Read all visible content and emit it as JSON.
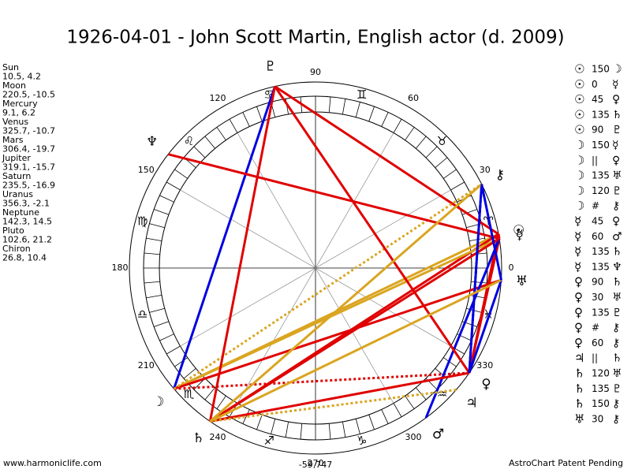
{
  "title": "1926-04-01 - John Scott Martin, English actor (d. 2009)",
  "planets": [
    {
      "name": "Sun",
      "glyph": "☉",
      "position": "10.5, 4.2"
    },
    {
      "name": "Moon",
      "glyph": "☽",
      "position": "220.5, -10.5"
    },
    {
      "name": "Mercury",
      "glyph": "☿",
      "position": "9.1, 6.2"
    },
    {
      "name": "Venus",
      "glyph": "♀",
      "position": "325.7, -10.7"
    },
    {
      "name": "Mars",
      "glyph": "♂",
      "position": "306.4, -19.7"
    },
    {
      "name": "Jupiter",
      "glyph": "♃",
      "position": "319.1, -15.7"
    },
    {
      "name": "Saturn",
      "glyph": "♄",
      "position": "235.5, -16.9"
    },
    {
      "name": "Uranus",
      "glyph": "♅",
      "position": "356.3, -2.1"
    },
    {
      "name": "Neptune",
      "glyph": "♆",
      "position": "142.3, 14.5"
    },
    {
      "name": "Pluto",
      "glyph": "♇",
      "position": "102.6, 21.2"
    },
    {
      "name": "Chiron",
      "glyph": "⚷",
      "position": "26.8, 10.4"
    }
  ],
  "aspects": [
    {
      "from": "☉",
      "aspect": "150",
      "to": "☽",
      "color": "#daa520"
    },
    {
      "from": "☉",
      "aspect": "0",
      "to": "☿",
      "color": "#e00000"
    },
    {
      "from": "☉",
      "aspect": "45",
      "to": "♀",
      "color": "#e00000"
    },
    {
      "from": "☉",
      "aspect": "135",
      "to": "♄",
      "color": "#e00000"
    },
    {
      "from": "☉",
      "aspect": "90",
      "to": "♇",
      "color": "#e00000"
    },
    {
      "from": "☽",
      "aspect": "150",
      "to": "☿",
      "color": "#daa520"
    },
    {
      "from": "☽",
      "aspect": "||",
      "to": "♀",
      "color": "#e00000",
      "dotted": true
    },
    {
      "from": "☽",
      "aspect": "135",
      "to": "♅",
      "color": "#e00000"
    },
    {
      "from": "☽",
      "aspect": "120",
      "to": "♇",
      "color": "#0000e0"
    },
    {
      "from": "☽",
      "aspect": "#",
      "to": "⚷",
      "color": "#daa520",
      "dotted": true
    },
    {
      "from": "☿",
      "aspect": "45",
      "to": "♀",
      "color": "#e00000"
    },
    {
      "from": "☿",
      "aspect": "60",
      "to": "♂",
      "color": "#0000e0"
    },
    {
      "from": "☿",
      "aspect": "135",
      "to": "♄",
      "color": "#e00000"
    },
    {
      "from": "☿",
      "aspect": "135",
      "to": "♆",
      "color": "#e00000"
    },
    {
      "from": "♀",
      "aspect": "90",
      "to": "♄",
      "color": "#e00000"
    },
    {
      "from": "♀",
      "aspect": "30",
      "to": "♅",
      "color": "#0000e0"
    },
    {
      "from": "♀",
      "aspect": "135",
      "to": "♇",
      "color": "#e00000"
    },
    {
      "from": "♀",
      "aspect": "#",
      "to": "⚷",
      "color": "#0000e0",
      "dotted": true
    },
    {
      "from": "♀",
      "aspect": "60",
      "to": "⚷",
      "color": "#0000e0"
    },
    {
      "from": "♃",
      "aspect": "||",
      "to": "♄",
      "color": "#daa520",
      "dotted": true
    },
    {
      "from": "♄",
      "aspect": "120",
      "to": "♅",
      "color": "#daa520"
    },
    {
      "from": "♄",
      "aspect": "135",
      "to": "♇",
      "color": "#e00000"
    },
    {
      "from": "♄",
      "aspect": "150",
      "to": "⚷",
      "color": "#daa520"
    },
    {
      "from": "♅",
      "aspect": "30",
      "to": "⚷",
      "color": "#0000e0"
    }
  ],
  "degree_labels": [
    0,
    30,
    60,
    90,
    120,
    150,
    180,
    210,
    240,
    270,
    300,
    330
  ],
  "signs": [
    "♈",
    "♉",
    "♊",
    "♋",
    "♌",
    "♍",
    "♎",
    "♏",
    "♐",
    "♑",
    "♒",
    "♓"
  ],
  "footer": {
    "site": "www.harmoniclife.com",
    "number": "-59,747",
    "note": "AstroChart Patent Pending"
  }
}
